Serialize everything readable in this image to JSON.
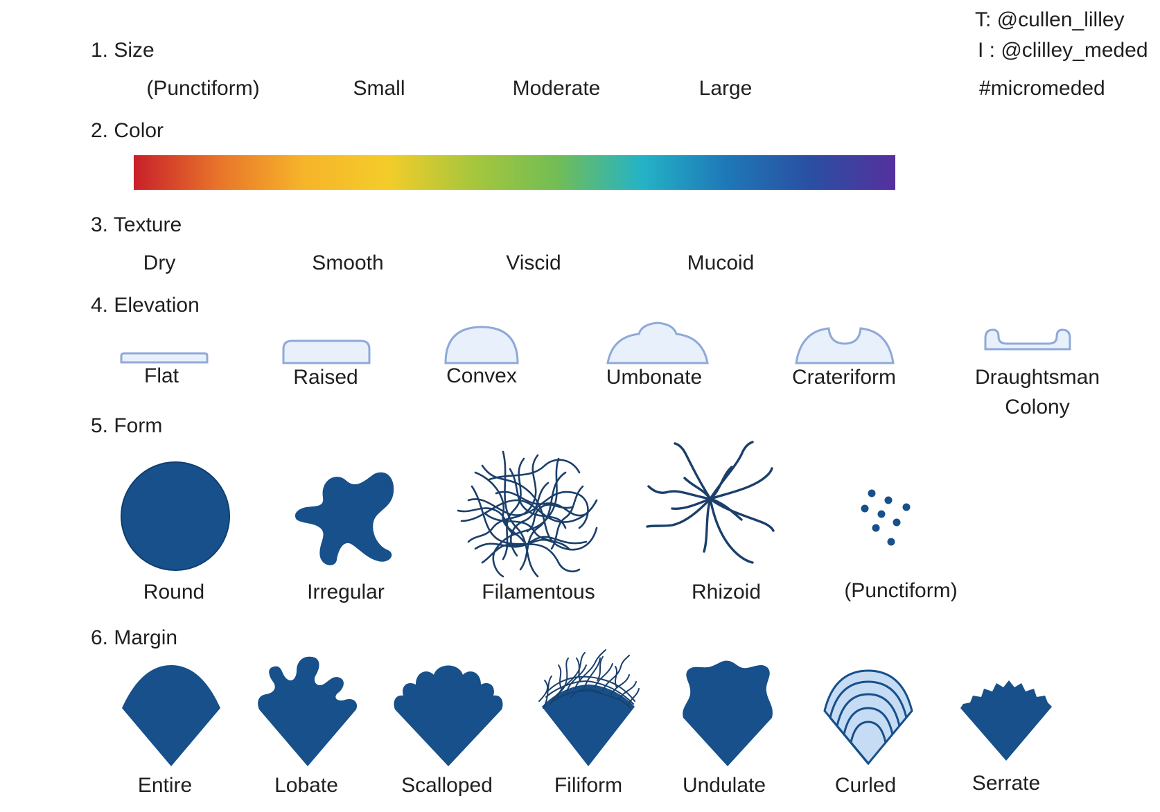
{
  "credits": {
    "twitter": "T: @cullen_lilley",
    "instagram": "I : @clilley_meded",
    "hashtag": "#micromeded"
  },
  "colors": {
    "shape_fill": "#17508a",
    "shape_light": "#e8f0fb",
    "shape_outline": "#8fa9d8"
  },
  "sections": {
    "size": {
      "heading": "1. Size",
      "items": [
        "(Punctiform)",
        "Small",
        "Moderate",
        "Large"
      ]
    },
    "color": {
      "heading": "2. Color",
      "gradient": [
        "#c8202a",
        "#e8742a",
        "#f6b42a",
        "#f4cc2a",
        "#a7c63c",
        "#72bd55",
        "#24b3c6",
        "#1e78b8",
        "#2a4fa2",
        "#55309e"
      ]
    },
    "texture": {
      "heading": "3. Texture",
      "items": [
        "Dry",
        "Smooth",
        "Viscid",
        "Mucoid"
      ]
    },
    "elevation": {
      "heading": "4. Elevation",
      "items": [
        {
          "label": "Flat",
          "icon": "flat-elevation-icon"
        },
        {
          "label": "Raised",
          "icon": "raised-elevation-icon"
        },
        {
          "label": "Convex",
          "icon": "convex-elevation-icon"
        },
        {
          "label": "Umbonate",
          "icon": "umbonate-elevation-icon"
        },
        {
          "label": "Crateriform",
          "icon": "crateriform-elevation-icon"
        },
        {
          "label": "Draughtsman",
          "label2": "Colony",
          "icon": "draughtsman-elevation-icon"
        }
      ]
    },
    "form": {
      "heading": "5. Form",
      "items": [
        {
          "label": "Round",
          "icon": "round-form-icon"
        },
        {
          "label": "Irregular",
          "icon": "irregular-form-icon"
        },
        {
          "label": "Filamentous",
          "icon": "filamentous-form-icon"
        },
        {
          "label": "Rhizoid",
          "icon": "rhizoid-form-icon"
        },
        {
          "label": "(Punctiform)",
          "icon": "punctiform-form-icon"
        }
      ]
    },
    "margin": {
      "heading": "6. Margin",
      "items": [
        {
          "label": "Entire",
          "icon": "entire-margin-icon"
        },
        {
          "label": "Lobate",
          "icon": "lobate-margin-icon"
        },
        {
          "label": "Scalloped",
          "icon": "scalloped-margin-icon"
        },
        {
          "label": "Filiform",
          "icon": "filiform-margin-icon"
        },
        {
          "label": "Undulate",
          "icon": "undulate-margin-icon"
        },
        {
          "label": "Curled",
          "icon": "curled-margin-icon"
        },
        {
          "label": "Serrate",
          "icon": "serrate-margin-icon"
        }
      ]
    }
  }
}
